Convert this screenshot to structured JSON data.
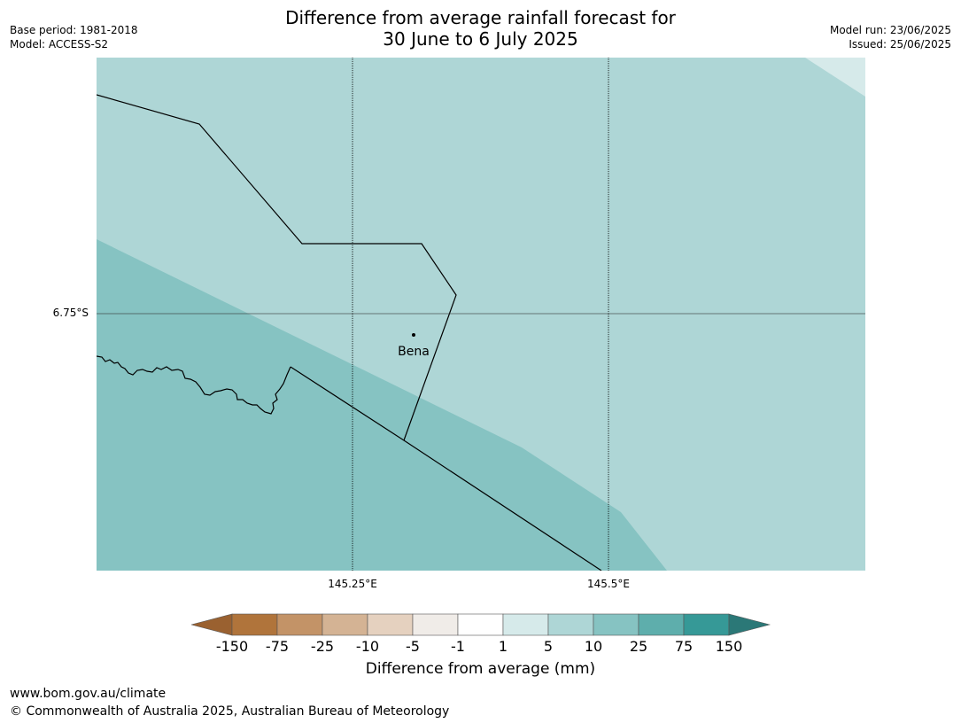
{
  "title_line1": "Difference from average rainfall forecast for",
  "title_line2": "30 June to 6 July 2025",
  "base_period": "Base period: 1981-2018",
  "model": "Model: ACCESS-S2",
  "model_run": "Model run: 23/06/2025",
  "issued": "Issued: 25/06/2025",
  "map": {
    "place_label": "Bena",
    "lat_label": "6.75°S",
    "lon_labels": [
      "145.25°E",
      "145.5°E"
    ],
    "zone_colors": {
      "5_10": "#aed6d6",
      "10_25": "#86c3c2",
      "1_5": "#d6eaea"
    }
  },
  "colorbar": {
    "title": "Difference from average (mm)",
    "ticks": [
      "-150",
      "-75",
      "-25",
      "-10",
      "-5",
      "-1",
      "1",
      "5",
      "10",
      "25",
      "75",
      "150"
    ],
    "colors": [
      "#9a6130",
      "#b0743b",
      "#c39367",
      "#d4b394",
      "#e5d1bf",
      "#f0ece8",
      "#ffffff",
      "#d6eaea",
      "#aed6d6",
      "#86c3c2",
      "#5eaeac",
      "#369997",
      "#2b7877"
    ]
  },
  "footer": {
    "url": "www.bom.gov.au/climate",
    "copyright": "© Commonwealth of Australia 2025, Australian Bureau of Meteorology"
  }
}
